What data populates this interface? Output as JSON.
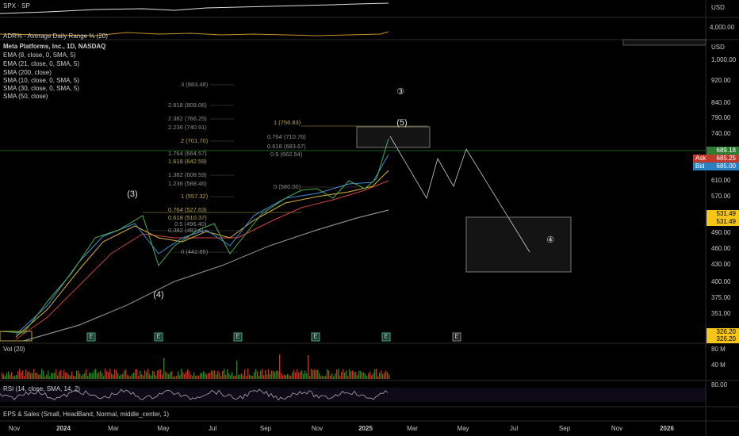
{
  "legend": {
    "spx": "SPX · SP",
    "adr": "ADR% - Average Daily Range % (20)",
    "symbol": "Meta Platforms, Inc., 1D, NASDAQ",
    "indicators": [
      "EMA (8, close, 0, SMA, 5)",
      "EMA (21, close, 0, SMA, 5)",
      "SMA (200, close)",
      "SMA (10, close, 0, SMA, 5)",
      "SMA (30, close, 0, SMA, 5)",
      "SMA (50, close)"
    ],
    "vol": "Vol (20)",
    "rsi": "RSI (14, close, SMA, 14, 2)",
    "eps": "EPS & Sales (Small, HeadBand, Normal, middle_center, 1)"
  },
  "price_axis": {
    "currency": "USD",
    "spx_level": "4,000.00",
    "levels": [
      "1,000.00",
      "920.00",
      "840.00",
      "790.00",
      "740.00",
      "610.00",
      "570.00",
      "490.00",
      "460.00",
      "430.00",
      "400.00",
      "375.00",
      "351.00"
    ],
    "last": "689.18",
    "ask_label": "Ask",
    "ask": "685.25",
    "bid_label": "Bid",
    "bid": "685.00",
    "marker_high": [
      "531.49",
      "531.49"
    ],
    "marker_low": [
      "326.20",
      "326.20"
    ],
    "vol_levels": [
      "80 M",
      "40 M"
    ],
    "rsi_level": "80.00"
  },
  "fib_main": [
    "3 (883.48)",
    "2.618 (809.06)",
    "2.382 (766.25)",
    "2.236 (740.91)",
    "2 (701.70)",
    "1.764 (664.57)",
    "1.618 (642.59)",
    "1.382 (608.59)",
    "1.236 (588.46)",
    "1 (557.32)",
    "0.764 (527.63)",
    "0.618 (510.37)",
    "0.5 (496.40)",
    "0.382 (482.4)",
    "0 (442.65)"
  ],
  "fib_recent": [
    "1 (756.83)",
    "0.764 (710.76)",
    "0.618 (683.67)",
    "0.5 (662.54)",
    "0 (580.00)"
  ],
  "waves": [
    "③",
    "(5)",
    "(3)",
    "(4)",
    "④"
  ],
  "earnings_marker": "E",
  "time_axis": [
    "Nov",
    "2024",
    "Mar",
    "May",
    "Jul",
    "Sep",
    "Nov",
    "2025",
    "Mar",
    "May",
    "Jul",
    "Sep",
    "Nov",
    "2026"
  ]
}
